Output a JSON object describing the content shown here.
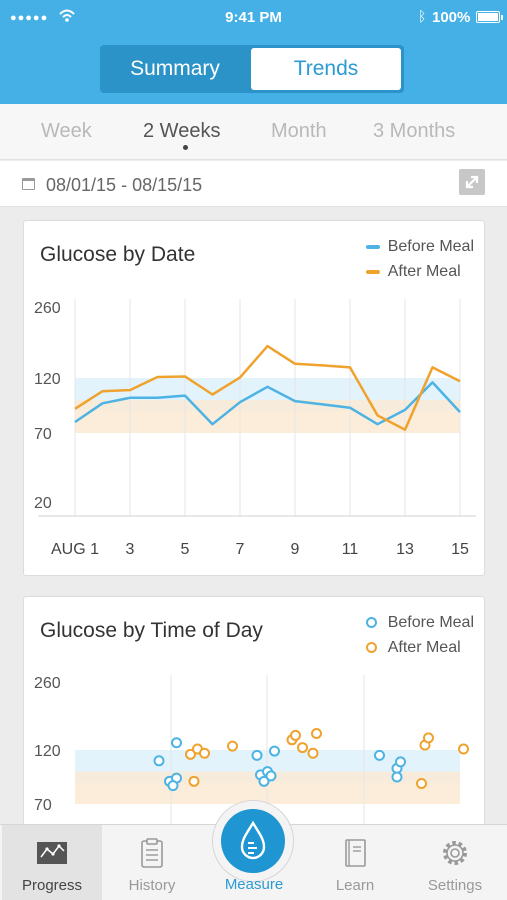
{
  "status_bar": {
    "time": "9:41 PM",
    "battery": "100%"
  },
  "segmented": {
    "summary": "Summary",
    "trends": "Trends"
  },
  "ranges": [
    "Week",
    "2 Weeks",
    "Month",
    "3 Months"
  ],
  "date_range": "08/01/15 - 08/15/15",
  "colors": {
    "before": "#4cb3e4",
    "after": "#f0a22e",
    "header": "#45b0e6"
  },
  "chart_data": [
    {
      "type": "line",
      "title": "Glucose by Date",
      "legend": [
        "Before Meal",
        "After Meal"
      ],
      "y_ticks": [
        "260",
        "120",
        "70",
        "20"
      ],
      "x_ticks": [
        "AUG 1",
        "3",
        "5",
        "7",
        "9",
        "11",
        "13",
        "15"
      ],
      "x": [
        1,
        2,
        3,
        4,
        5,
        6,
        7,
        8,
        9,
        10,
        11,
        12,
        13,
        14,
        15
      ],
      "series": [
        {
          "name": "Before Meal",
          "values": [
            80,
            97,
            102,
            102,
            104,
            78,
            98,
            112,
            99,
            96,
            93,
            78,
            91,
            116,
            89
          ]
        },
        {
          "name": "After Meal",
          "values": [
            92,
            108,
            109,
            122,
            123,
            105,
            121,
            183,
            148,
            145,
            141,
            86,
            73,
            141,
            117
          ]
        }
      ],
      "bands": {
        "before": [
          90,
          120
        ],
        "after": [
          70,
          100
        ]
      }
    },
    {
      "type": "scatter",
      "title": "Glucose by Time of Day",
      "legend": [
        "Before Meal",
        "After Meal"
      ],
      "y_ticks": [
        "260",
        "120",
        "70"
      ],
      "before_points": [
        [
          2.4,
          110
        ],
        [
          2.9,
          135
        ],
        [
          2.7,
          91
        ],
        [
          2.9,
          94
        ],
        [
          2.8,
          87
        ],
        [
          5.2,
          115
        ],
        [
          5.3,
          97
        ],
        [
          5.5,
          100
        ],
        [
          5.4,
          91
        ],
        [
          5.6,
          96
        ],
        [
          5.7,
          119
        ],
        [
          8.7,
          115
        ],
        [
          9.2,
          103
        ],
        [
          9.3,
          109
        ],
        [
          9.2,
          95
        ]
      ],
      "after_points": [
        [
          3.3,
          116
        ],
        [
          3.5,
          122
        ],
        [
          3.4,
          91
        ],
        [
          3.7,
          117
        ],
        [
          4.5,
          128
        ],
        [
          6.2,
          141
        ],
        [
          6.5,
          125
        ],
        [
          6.8,
          117
        ],
        [
          6.9,
          154
        ],
        [
          6.3,
          150
        ],
        [
          9.9,
          89
        ],
        [
          10.0,
          130
        ],
        [
          10.1,
          145
        ],
        [
          11.1,
          122
        ]
      ],
      "bands": {
        "before": [
          90,
          120
        ],
        "after": [
          70,
          100
        ]
      }
    }
  ],
  "tabs": [
    {
      "label": "Progress",
      "icon": "progress-chart-icon"
    },
    {
      "label": "History",
      "icon": "clipboard-icon"
    },
    {
      "label": "Measure",
      "icon": "drop-icon"
    },
    {
      "label": "Learn",
      "icon": "book-icon"
    },
    {
      "label": "Settings",
      "icon": "gear-icon"
    }
  ]
}
